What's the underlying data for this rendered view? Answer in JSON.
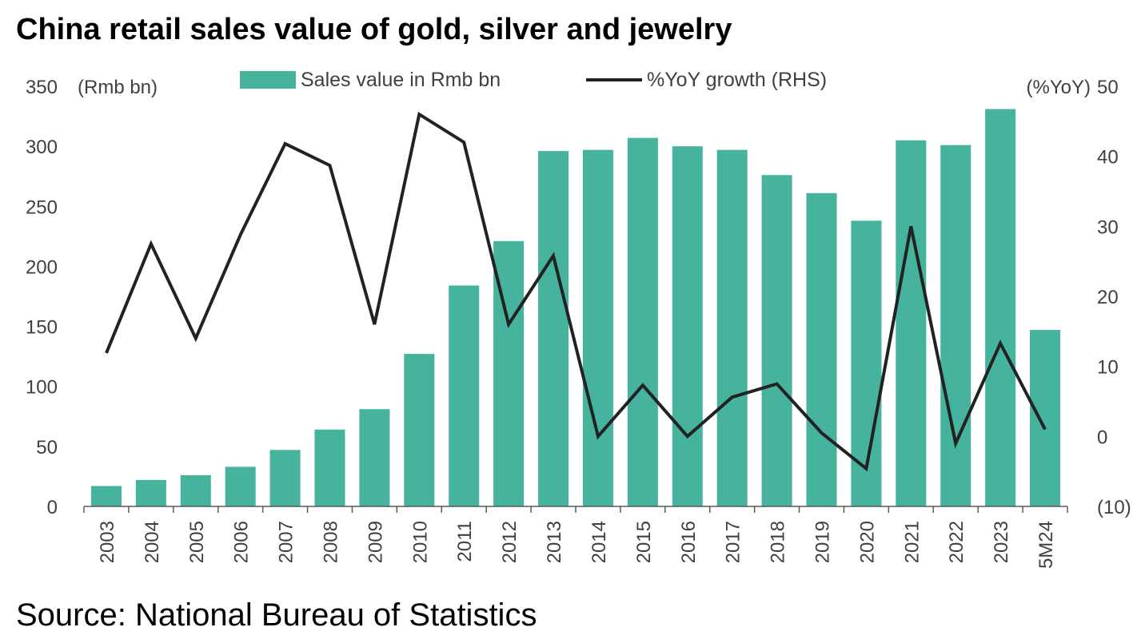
{
  "title": "China retail sales value of gold, silver and jewelry",
  "source": "Source: National Bureau of Statistics",
  "colors": {
    "bar": "#45b39d",
    "line": "#222222",
    "axis": "#595959",
    "text": "#404040"
  },
  "chart_data": {
    "type": "bar",
    "title": "China retail sales value of gold, silver and jewelry",
    "categories": [
      "2003",
      "2004",
      "2005",
      "2006",
      "2007",
      "2008",
      "2009",
      "2010",
      "2011",
      "2012",
      "2013",
      "2014",
      "2015",
      "2016",
      "2017",
      "2018",
      "2019",
      "2020",
      "2021",
      "2022",
      "2023",
      "5M24"
    ],
    "series": [
      {
        "name": "Sales value in Rmb bn",
        "type": "bar",
        "axis": "left",
        "values": [
          17,
          22,
          26,
          33,
          47,
          64,
          81,
          127,
          184,
          221,
          296,
          297,
          307,
          300,
          297,
          276,
          261,
          238,
          305,
          301,
          331,
          147
        ]
      },
      {
        "name": "%YoY growth (RHS)",
        "type": "line",
        "axis": "right",
        "values": [
          11.9,
          27.5,
          14.0,
          28.8,
          41.8,
          38.7,
          16.0,
          46.0,
          42.0,
          16.0,
          25.8,
          0.0,
          7.3,
          0.0,
          5.6,
          7.5,
          0.5,
          -4.6,
          30.0,
          -1.0,
          13.3,
          1.0
        ]
      }
    ],
    "left_axis": {
      "label": "(Rmb bn)",
      "ylim": [
        0,
        350
      ],
      "ticks": [
        "0",
        "50",
        "100",
        "150",
        "200",
        "250",
        "300",
        "350"
      ]
    },
    "right_axis": {
      "label": "(%YoY)",
      "ylim": [
        -10,
        50
      ],
      "ticks": [
        "(10)",
        "0",
        "10",
        "20",
        "30",
        "40",
        "50"
      ]
    },
    "grid": false,
    "legend": "top"
  }
}
